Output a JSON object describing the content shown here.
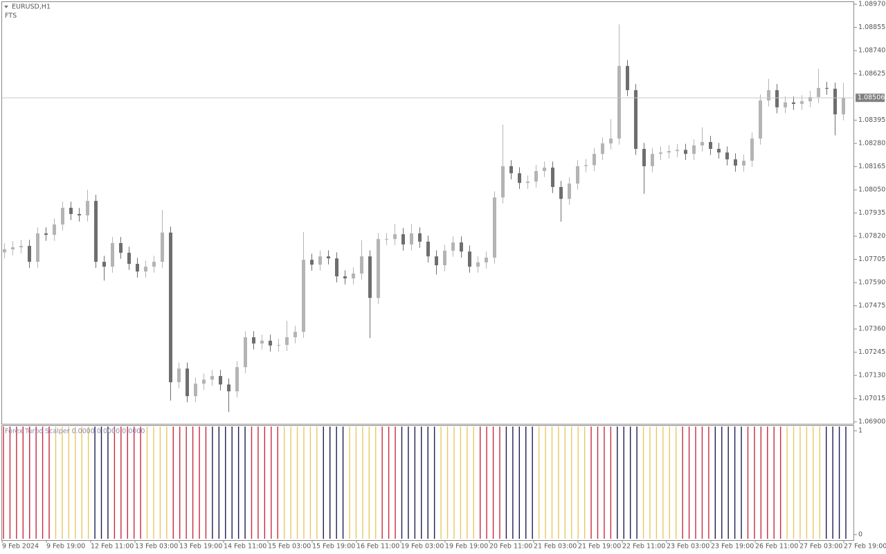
{
  "chart_data": {
    "type": "candlestick",
    "title": "EURUSD,H1",
    "subtitle": "FTS",
    "xlabels": [
      "9 Feb 2024",
      "9 Feb 19:00",
      "12 Feb 11:00",
      "13 Feb 03:00",
      "13 Feb 19:00",
      "14 Feb 11:00",
      "15 Feb 03:00",
      "15 Feb 19:00",
      "16 Feb 11:00",
      "19 Feb 03:00",
      "19 Feb 19:00",
      "20 Feb 11:00",
      "21 Feb 03:00",
      "21 Feb 19:00",
      "22 Feb 11:00",
      "23 Feb 03:00",
      "23 Feb 19:00",
      "26 Feb 11:00",
      "27 Feb 03:00",
      "27 Feb 19:00"
    ],
    "open": [
      1.0774,
      1.07755,
      1.07765,
      1.07772,
      1.07693,
      1.07834,
      1.07827,
      1.07878,
      1.07961,
      1.0793,
      1.07923,
      1.07995,
      1.07693,
      1.07669,
      1.07786,
      1.07738,
      1.07683,
      1.07645,
      1.07669,
      1.07693,
      1.07838,
      1.07096,
      1.07164,
      1.07027,
      1.07089,
      1.07109,
      1.07127,
      1.07085,
      1.07051,
      1.07171,
      1.07319,
      1.07288,
      1.07302,
      1.07278,
      1.07281,
      1.07319,
      1.07346,
      1.07703,
      1.07679,
      1.0772,
      1.0771,
      1.07621,
      1.07611,
      1.07635,
      1.0772,
      1.07514,
      1.07806,
      1.07806,
      1.0783,
      1.07779,
      1.07834,
      1.07793,
      1.0772,
      1.07676,
      1.07748,
      1.07789,
      1.07744,
      1.07669,
      1.0769,
      1.07714,
      1.08012,
      1.08167,
      1.08132,
      1.08084,
      1.08091,
      1.08143,
      1.0816,
      1.08064,
      1.08005,
      1.08081,
      1.08167,
      1.08172,
      1.08228,
      1.0828,
      1.08304,
      1.08664,
      1.08544,
      1.08253,
      1.08167,
      1.08228,
      1.08235,
      1.08242,
      1.08248,
      1.08228,
      1.0827,
      1.08287,
      1.08253,
      1.08235,
      1.08201,
      1.0817,
      1.08194,
      1.08304,
      1.08493,
      1.08544,
      1.08459,
      1.08483,
      1.08476,
      1.08489,
      1.0851,
      1.08555,
      1.08551,
      1.08424
    ],
    "high": [
      1.07785,
      1.07795,
      1.07802,
      1.07802,
      1.07864,
      1.07864,
      1.07908,
      1.07991,
      1.07991,
      1.0796,
      1.0805,
      1.08025,
      1.07723,
      1.07816,
      1.07816,
      1.07768,
      1.07713,
      1.07699,
      1.07723,
      1.0795,
      1.07868,
      1.07194,
      1.07194,
      1.07119,
      1.07139,
      1.07157,
      1.07157,
      1.07115,
      1.07201,
      1.07349,
      1.07349,
      1.07332,
      1.07332,
      1.07311,
      1.074,
      1.07376,
      1.0784,
      1.07733,
      1.0775,
      1.0775,
      1.0774,
      1.07651,
      1.07665,
      1.078,
      1.0775,
      1.07836,
      1.07836,
      1.0788,
      1.0786,
      1.0788,
      1.07864,
      1.07823,
      1.0775,
      1.07778,
      1.07819,
      1.07819,
      1.07774,
      1.0772,
      1.07744,
      1.08042,
      1.08373,
      1.08197,
      1.08162,
      1.08121,
      1.08173,
      1.0819,
      1.0819,
      1.08094,
      1.08111,
      1.08197,
      1.08202,
      1.08258,
      1.0831,
      1.084,
      1.0887,
      1.08694,
      1.08574,
      1.08283,
      1.08258,
      1.08265,
      1.08272,
      1.08278,
      1.08278,
      1.083,
      1.0836,
      1.08317,
      1.08283,
      1.08265,
      1.08231,
      1.08224,
      1.08334,
      1.08523,
      1.086,
      1.08574,
      1.08513,
      1.08513,
      1.08519,
      1.0854,
      1.0865,
      1.08585,
      1.08581,
      1.0858
    ],
    "low": [
      1.0771,
      1.07725,
      1.07735,
      1.07663,
      1.07663,
      1.07797,
      1.07797,
      1.07848,
      1.079,
      1.07893,
      1.07893,
      1.07663,
      1.076,
      1.07639,
      1.07708,
      1.07653,
      1.07615,
      1.07615,
      1.07639,
      1.07663,
      1.07005,
      1.07066,
      1.06997,
      1.06997,
      1.07059,
      1.07079,
      1.07055,
      1.06948,
      1.07021,
      1.07141,
      1.07258,
      1.07258,
      1.07248,
      1.07248,
      1.07251,
      1.07289,
      1.07316,
      1.07649,
      1.07649,
      1.0768,
      1.07591,
      1.07581,
      1.07581,
      1.07605,
      1.07315,
      1.07484,
      1.07776,
      1.07776,
      1.07749,
      1.07749,
      1.07763,
      1.0769,
      1.0763,
      1.07646,
      1.07718,
      1.07714,
      1.07639,
      1.07639,
      1.0766,
      1.07684,
      1.07982,
      1.08102,
      1.08054,
      1.08054,
      1.08061,
      1.08113,
      1.08034,
      1.07892,
      1.07975,
      1.08051,
      1.08137,
      1.08142,
      1.08198,
      1.0825,
      1.08274,
      1.08514,
      1.08223,
      1.0803,
      1.08137,
      1.08198,
      1.08205,
      1.08212,
      1.08198,
      1.08198,
      1.0824,
      1.08223,
      1.08205,
      1.08171,
      1.0814,
      1.0814,
      1.08164,
      1.08274,
      1.08463,
      1.08429,
      1.08429,
      1.08446,
      1.08446,
      1.08459,
      1.0848,
      1.08521,
      1.0832,
      1.08394
    ],
    "close": [
      1.07755,
      1.07765,
      1.07772,
      1.07693,
      1.07834,
      1.07827,
      1.07878,
      1.07961,
      1.0793,
      1.07923,
      1.07995,
      1.07693,
      1.07669,
      1.07786,
      1.07738,
      1.07683,
      1.07645,
      1.07669,
      1.07693,
      1.07838,
      1.07096,
      1.07164,
      1.07027,
      1.07089,
      1.07109,
      1.07127,
      1.07085,
      1.07051,
      1.07171,
      1.07319,
      1.07288,
      1.07302,
      1.07278,
      1.07281,
      1.07319,
      1.07346,
      1.07703,
      1.07679,
      1.0772,
      1.0771,
      1.07621,
      1.07611,
      1.07635,
      1.0772,
      1.07514,
      1.07806,
      1.07806,
      1.0783,
      1.07779,
      1.07834,
      1.07793,
      1.0772,
      1.07676,
      1.07748,
      1.07789,
      1.07744,
      1.07669,
      1.0769,
      1.07714,
      1.08012,
      1.08167,
      1.08132,
      1.08084,
      1.08091,
      1.08143,
      1.0816,
      1.08064,
      1.08005,
      1.08081,
      1.08167,
      1.08172,
      1.08228,
      1.0828,
      1.08304,
      1.08664,
      1.08544,
      1.08253,
      1.08167,
      1.08228,
      1.08235,
      1.08242,
      1.08248,
      1.08228,
      1.0827,
      1.08287,
      1.08253,
      1.08235,
      1.08201,
      1.0817,
      1.08194,
      1.08304,
      1.08493,
      1.08544,
      1.08459,
      1.08483,
      1.08476,
      1.08489,
      1.0851,
      1.08555,
      1.08551,
      1.08424,
      1.08506
    ],
    "up_color": "#b4b4b4",
    "down_color": "#6e6e6e",
    "ylim": [
      1.0689,
      1.08984
    ],
    "yticks": [
      {
        "value": 1.0897,
        "label": "1.08970"
      },
      1.08855,
      {
        "value": 1.0874,
        "label": "1.08740"
      },
      1.08625,
      1.08395,
      {
        "value": 1.0828,
        "label": "1.08280"
      },
      1.08165,
      {
        "value": 1.0805,
        "label": "1.08050"
      },
      1.07935,
      {
        "value": 1.0782,
        "label": "1.07820"
      },
      1.07705,
      {
        "value": 1.0759,
        "label": "1.07590"
      },
      1.07475,
      {
        "value": 1.0736,
        "label": "1.07360"
      },
      1.07245,
      {
        "value": 1.0713,
        "label": "1.07130"
      },
      1.07015,
      {
        "value": 1.069,
        "label": "1.06900"
      }
    ],
    "indicator": {
      "type": "bar",
      "label": "Forex Turbo Scalper 0.0000 0.0000 0.0000",
      "ylim": [
        0,
        1
      ],
      "yticks": [
        1,
        0
      ],
      "palette": {
        "r": "#c8283c",
        "y": "#e8c860",
        "n": "#1c1c50"
      },
      "kinds": "rrrrrrrryyyyyynnnrrrrryyyyrrrrrrnnnnnnrrrrryyyyyynnnnyyyyyrrrnnnnnnyyyyyyrrrrnnnnnyyyyyyyyrrrrnnnnyyyyyyrrrrrnnnnnrrrrrryyyyyynnnn",
      "values": [
        1,
        1,
        1,
        1,
        1,
        1,
        1,
        1,
        1,
        1,
        1,
        1,
        1,
        1,
        1,
        1,
        1,
        1,
        1,
        1,
        1,
        1,
        1,
        1,
        1,
        1,
        1,
        1,
        1,
        1,
        1,
        1,
        1,
        1,
        1,
        1,
        1,
        1,
        1,
        1,
        1,
        1,
        1,
        1,
        1,
        1,
        1,
        1,
        1,
        1,
        1,
        1,
        1,
        1,
        1,
        1,
        1,
        1,
        1,
        1,
        1,
        1,
        1,
        1,
        1,
        1,
        1,
        1,
        1,
        1,
        1,
        1,
        1,
        1,
        1,
        1,
        1,
        1,
        1,
        1,
        1,
        1,
        1,
        1,
        1,
        1,
        1,
        1,
        1,
        1,
        1,
        1,
        1,
        1,
        1,
        1,
        1,
        1,
        1,
        1,
        1,
        1,
        1,
        1,
        1,
        1,
        1,
        1,
        1,
        1,
        1,
        1,
        1,
        1,
        1,
        1,
        1,
        1,
        1,
        1,
        1,
        1,
        1,
        1,
        1,
        1,
        1,
        1,
        1,
        1
      ]
    }
  }
}
